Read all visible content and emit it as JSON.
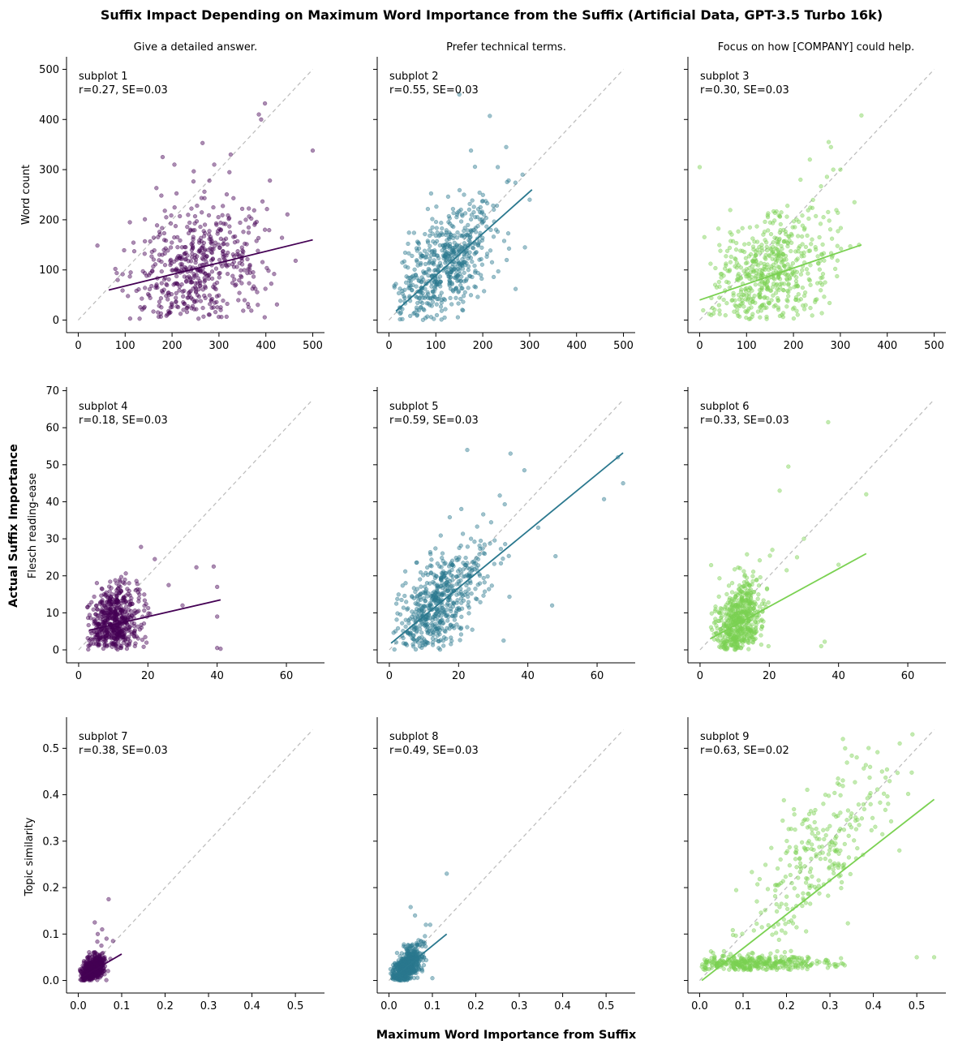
{
  "figure": {
    "title": "Suffix Impact Depending on Maximum Word Importance from the Suffix (Artificial Data, GPT-3.5 Turbo 16k)",
    "supxlabel": "Maximum Word Importance from Suffix",
    "supylabel": "Actual Suffix Importance",
    "column_titles": [
      "Give a detailed answer.",
      "Prefer technical terms.",
      "Focus on how [COMPANY] could help."
    ],
    "row_ylabels": [
      "Word count",
      "Flesch reading-ease",
      "Topic similarity"
    ],
    "colors": {
      "col1": "#440154",
      "col2": "#2a788e",
      "col3": "#7ad151",
      "diagonal": "#bbbbbb"
    }
  },
  "chart_data": [
    {
      "type": "scatter",
      "name": "subplot 1",
      "title": "subplot 1",
      "stats": "r=0.27, SE=0.03",
      "suffix": "Give a detailed answer.",
      "metric": "Word count",
      "xlim": [
        -25,
        525
      ],
      "ylim": [
        -25,
        525
      ],
      "xticks": [
        0,
        100,
        200,
        300,
        400,
        500
      ],
      "yticks": [
        0,
        100,
        200,
        300,
        400,
        500
      ],
      "regression": {
        "x": [
          65,
          500
        ],
        "y": [
          60,
          160
        ]
      },
      "diagonal": [
        0,
        500
      ],
      "cloud": {
        "n": 520,
        "cx": 255,
        "sx": 70,
        "slope": 0.23,
        "intercept": 45,
        "noise": 65,
        "xmin": 30,
        "xmax": 470,
        "ymin": 0,
        "ymax": 330
      },
      "outliers": [
        [
          398,
          432
        ],
        [
          390,
          400
        ],
        [
          500,
          338
        ],
        [
          180,
          325
        ],
        [
          265,
          353
        ],
        [
          325,
          330
        ],
        [
          290,
          310
        ],
        [
          385,
          410
        ],
        [
          110,
          195
        ],
        [
          205,
          310
        ]
      ]
    },
    {
      "type": "scatter",
      "name": "subplot 2",
      "title": "subplot 2",
      "stats": "r=0.55, SE=0.03",
      "suffix": "Prefer technical terms.",
      "metric": "Word count",
      "xlim": [
        -25,
        525
      ],
      "ylim": [
        -25,
        525
      ],
      "xticks": [
        0,
        100,
        200,
        300,
        400,
        500
      ],
      "yticks": [
        0,
        100,
        200,
        300,
        400,
        500
      ],
      "regression": {
        "x": [
          15,
          305
        ],
        "y": [
          18,
          260
        ]
      },
      "diagonal": [
        0,
        500
      ],
      "cloud": {
        "n": 560,
        "cx": 115,
        "sx": 55,
        "slope": 0.83,
        "intercept": 5,
        "noise": 55,
        "xmin": 10,
        "xmax": 300,
        "ymin": 0,
        "ymax": 340
      },
      "outliers": [
        [
          150,
          450
        ],
        [
          215,
          407
        ],
        [
          250,
          345
        ],
        [
          285,
          290
        ],
        [
          300,
          240
        ],
        [
          175,
          338
        ],
        [
          270,
          62
        ],
        [
          290,
          145
        ],
        [
          232,
          305
        ],
        [
          160,
          250
        ]
      ]
    },
    {
      "type": "scatter",
      "name": "subplot 3",
      "title": "subplot 3",
      "stats": "r=0.30, SE=0.03",
      "suffix": "Focus on how [COMPANY] could help.",
      "metric": "Word count",
      "xlim": [
        -25,
        525
      ],
      "ylim": [
        -25,
        525
      ],
      "xticks": [
        0,
        100,
        200,
        300,
        400,
        500
      ],
      "yticks": [
        0,
        100,
        200,
        300,
        400,
        500
      ],
      "regression": {
        "x": [
          0,
          345
        ],
        "y": [
          40,
          150
        ]
      },
      "diagonal": [
        0,
        500
      ],
      "cloud": {
        "n": 540,
        "cx": 150,
        "sx": 65,
        "slope": 0.32,
        "intercept": 40,
        "noise": 62,
        "xmin": 5,
        "xmax": 330,
        "ymin": 0,
        "ymax": 300
      },
      "outliers": [
        [
          0,
          305
        ],
        [
          345,
          408
        ],
        [
          275,
          355
        ],
        [
          280,
          345
        ],
        [
          235,
          320
        ],
        [
          300,
          300
        ],
        [
          330,
          235
        ],
        [
          285,
          300
        ],
        [
          215,
          280
        ],
        [
          340,
          150
        ]
      ]
    },
    {
      "type": "scatter",
      "name": "subplot 4",
      "title": "subplot 4",
      "stats": "r=0.18, SE=0.03",
      "suffix": "Give a detailed answer.",
      "metric": "Flesch reading-ease",
      "xlim": [
        -3.5,
        71
      ],
      "ylim": [
        -3.5,
        71
      ],
      "xticks": [
        0,
        20,
        40,
        60
      ],
      "yticks": [
        0,
        10,
        20,
        30,
        40,
        50,
        60,
        70
      ],
      "regression": {
        "x": [
          3,
          41
        ],
        "y": [
          5.3,
          13.5
        ]
      },
      "diagonal": [
        0,
        67.5
      ],
      "cloud": {
        "n": 560,
        "cx": 10,
        "sx": 3.8,
        "slope": 0.22,
        "intercept": 4.8,
        "noise": 5.0,
        "xmin": 2.5,
        "xmax": 30,
        "ymin": 0,
        "ymax": 29
      },
      "outliers": [
        [
          39,
          22.5
        ],
        [
          40,
          17
        ],
        [
          34,
          22.3
        ],
        [
          26,
          17.5
        ],
        [
          30,
          12
        ],
        [
          40,
          0.5
        ],
        [
          41,
          0.3
        ],
        [
          40,
          9
        ],
        [
          22,
          24.5
        ],
        [
          18,
          27.8
        ]
      ]
    },
    {
      "type": "scatter",
      "name": "subplot 5",
      "title": "subplot 5",
      "stats": "r=0.59, SE=0.03",
      "suffix": "Prefer technical terms.",
      "metric": "Flesch reading-ease",
      "xlim": [
        -3.5,
        71
      ],
      "ylim": [
        -3.5,
        71
      ],
      "xticks": [
        0,
        20,
        40,
        60
      ],
      "yticks": [
        0,
        10,
        20,
        30,
        40,
        50,
        60,
        70
      ],
      "regression": {
        "x": [
          0.5,
          67.5
        ],
        "y": [
          1.8,
          53.2
        ]
      },
      "diagonal": [
        0,
        67.5
      ],
      "cloud": {
        "n": 560,
        "cx": 14,
        "sx": 7,
        "slope": 0.77,
        "intercept": 1.5,
        "noise": 6.5,
        "xmin": 1,
        "xmax": 45,
        "ymin": 0,
        "ymax": 50
      },
      "outliers": [
        [
          67.5,
          45
        ],
        [
          66,
          52
        ],
        [
          62,
          40.7
        ],
        [
          22.5,
          54
        ],
        [
          39,
          48.5
        ],
        [
          35,
          53
        ],
        [
          47,
          12
        ],
        [
          48,
          25.3
        ],
        [
          33,
          2.5
        ],
        [
          43,
          33
        ]
      ]
    },
    {
      "type": "scatter",
      "name": "subplot 6",
      "title": "subplot 6",
      "stats": "r=0.33, SE=0.03",
      "suffix": "Focus on how [COMPANY] could help.",
      "metric": "Flesch reading-ease",
      "xlim": [
        -3.5,
        71
      ],
      "ylim": [
        -3.5,
        71
      ],
      "xticks": [
        0,
        20,
        40,
        60
      ],
      "yticks": [
        0,
        10,
        20,
        30,
        40,
        50,
        60,
        70
      ],
      "regression": {
        "x": [
          3,
          48
        ],
        "y": [
          3.0,
          26
        ]
      },
      "diagonal": [
        0,
        67.5
      ],
      "cloud": {
        "n": 560,
        "cx": 11,
        "sx": 3.5,
        "slope": 0.5,
        "intercept": 1.5,
        "noise": 5.5,
        "xmin": 3,
        "xmax": 28,
        "ymin": 0,
        "ymax": 31
      },
      "outliers": [
        [
          37,
          61.5
        ],
        [
          25.5,
          49.5
        ],
        [
          23,
          43
        ],
        [
          48,
          42
        ],
        [
          30,
          30
        ],
        [
          36,
          2.2
        ],
        [
          35,
          1.0
        ],
        [
          40,
          23
        ],
        [
          28,
          25
        ],
        [
          25,
          21.5
        ]
      ]
    },
    {
      "type": "scatter",
      "name": "subplot 7",
      "title": "subplot 7",
      "stats": "r=0.38, SE=0.03",
      "suffix": "Give a detailed answer.",
      "metric": "Topic similarity",
      "xlim": [
        -0.027,
        0.567
      ],
      "ylim": [
        -0.027,
        0.567
      ],
      "xticks": [
        0.0,
        0.1,
        0.2,
        0.3,
        0.4,
        0.5
      ],
      "yticks": [
        0.0,
        0.1,
        0.2,
        0.3,
        0.4,
        0.5
      ],
      "regression": {
        "x": [
          0.005,
          0.1
        ],
        "y": [
          0.005,
          0.057
        ]
      },
      "diagonal": [
        0,
        0.54
      ],
      "cloud": {
        "n": 560,
        "cx": 0.032,
        "sx": 0.013,
        "slope": 0.55,
        "intercept": 0.004,
        "noise": 0.014,
        "xmin": 0.003,
        "xmax": 0.09,
        "ymin": 0.0,
        "ymax": 0.085
      },
      "outliers": [
        [
          0.07,
          0.175
        ],
        [
          0.038,
          0.125
        ],
        [
          0.055,
          0.11
        ],
        [
          0.08,
          0.085
        ],
        [
          0.045,
          0.1
        ],
        [
          0.065,
          0.09
        ]
      ]
    },
    {
      "type": "scatter",
      "name": "subplot 8",
      "title": "subplot 8",
      "stats": "r=0.49, SE=0.03",
      "suffix": "Prefer technical terms.",
      "metric": "Topic similarity",
      "xlim": [
        -0.027,
        0.567
      ],
      "ylim": [
        -0.027,
        0.567
      ],
      "xticks": [
        0.0,
        0.1,
        0.2,
        0.3,
        0.4,
        0.5
      ],
      "yticks": [
        0.0,
        0.1,
        0.2,
        0.3,
        0.4,
        0.5
      ],
      "regression": {
        "x": [
          0.005,
          0.133
        ],
        "y": [
          0.002,
          0.1
        ]
      },
      "diagonal": [
        0,
        0.54
      ],
      "cloud": {
        "n": 560,
        "cx": 0.04,
        "sx": 0.018,
        "slope": 0.75,
        "intercept": 0.0,
        "noise": 0.018,
        "xmin": 0.003,
        "xmax": 0.11,
        "ymin": 0.0,
        "ymax": 0.12
      },
      "outliers": [
        [
          0.133,
          0.23
        ],
        [
          0.05,
          0.158
        ],
        [
          0.095,
          0.12
        ],
        [
          0.1,
          0.005
        ],
        [
          0.085,
          0.12
        ],
        [
          0.06,
          0.14
        ]
      ]
    },
    {
      "type": "scatter",
      "name": "subplot 9",
      "title": "subplot 9",
      "stats": "r=0.63, SE=0.02",
      "suffix": "Focus on how [COMPANY] could help.",
      "metric": "Topic similarity",
      "xlim": [
        -0.027,
        0.567
      ],
      "ylim": [
        -0.027,
        0.567
      ],
      "xticks": [
        0.0,
        0.1,
        0.2,
        0.3,
        0.4,
        0.5
      ],
      "yticks": [
        0.0,
        0.1,
        0.2,
        0.3,
        0.4,
        0.5
      ],
      "regression": {
        "x": [
          0.005,
          0.54
        ],
        "y": [
          0.0,
          0.39
        ]
      },
      "diagonal": [
        0,
        0.54
      ],
      "cloud": {
        "n": 360,
        "cx": 0.12,
        "sx": 0.1,
        "slope": 0.0,
        "intercept": 0.035,
        "noise": 0.01,
        "xmin": 0.005,
        "xmax": 0.46,
        "ymin": 0.022,
        "ymax": 0.07
      },
      "cloud2": {
        "n": 260,
        "cx": 0.28,
        "sx": 0.09,
        "slope": 1.0,
        "intercept": 0.0,
        "noise": 0.075,
        "xmin": 0.02,
        "xmax": 0.52,
        "ymin": 0.08,
        "ymax": 0.53
      },
      "outliers": [
        [
          0.49,
          0.53
        ],
        [
          0.54,
          0.05
        ],
        [
          0.5,
          0.05
        ],
        [
          0.46,
          0.28
        ],
        [
          0.42,
          0.45
        ],
        [
          0.33,
          0.52
        ]
      ]
    }
  ]
}
